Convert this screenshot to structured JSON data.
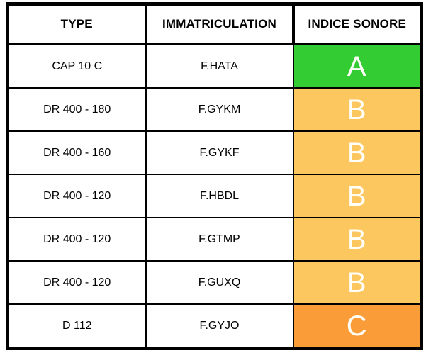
{
  "table": {
    "headers": [
      "TYPE",
      "IMMATRICULATION",
      "INDICE SONORE"
    ],
    "rows": [
      {
        "type": "CAP 10 C",
        "immatriculation": "F.HATA",
        "indice": "A",
        "indice_color": "#33CC33"
      },
      {
        "type": "DR 400 - 180",
        "immatriculation": "F.GYKM",
        "indice": "B",
        "indice_color": "#FCC75E"
      },
      {
        "type": "DR 400 - 160",
        "immatriculation": "F.GYKF",
        "indice": "B",
        "indice_color": "#FCC75E"
      },
      {
        "type": "DR 400 - 120",
        "immatriculation": "F.HBDL",
        "indice": "B",
        "indice_color": "#FCC75E"
      },
      {
        "type": "DR 400 - 120",
        "immatriculation": "F.GTMP",
        "indice": "B",
        "indice_color": "#FCC75E"
      },
      {
        "type": "DR 400 - 120",
        "immatriculation": "F.GUXQ",
        "indice": "B",
        "indice_color": "#FCC75E"
      },
      {
        "type": "D 112",
        "immatriculation": "F.GYJO",
        "indice": "C",
        "indice_color": "#FA9C38"
      }
    ],
    "grade_colors": {
      "A": "#33CC33",
      "B": "#FCC75E",
      "C": "#FA9C38"
    },
    "border_color": "#000000",
    "letter_color": "#FFFEF8"
  }
}
